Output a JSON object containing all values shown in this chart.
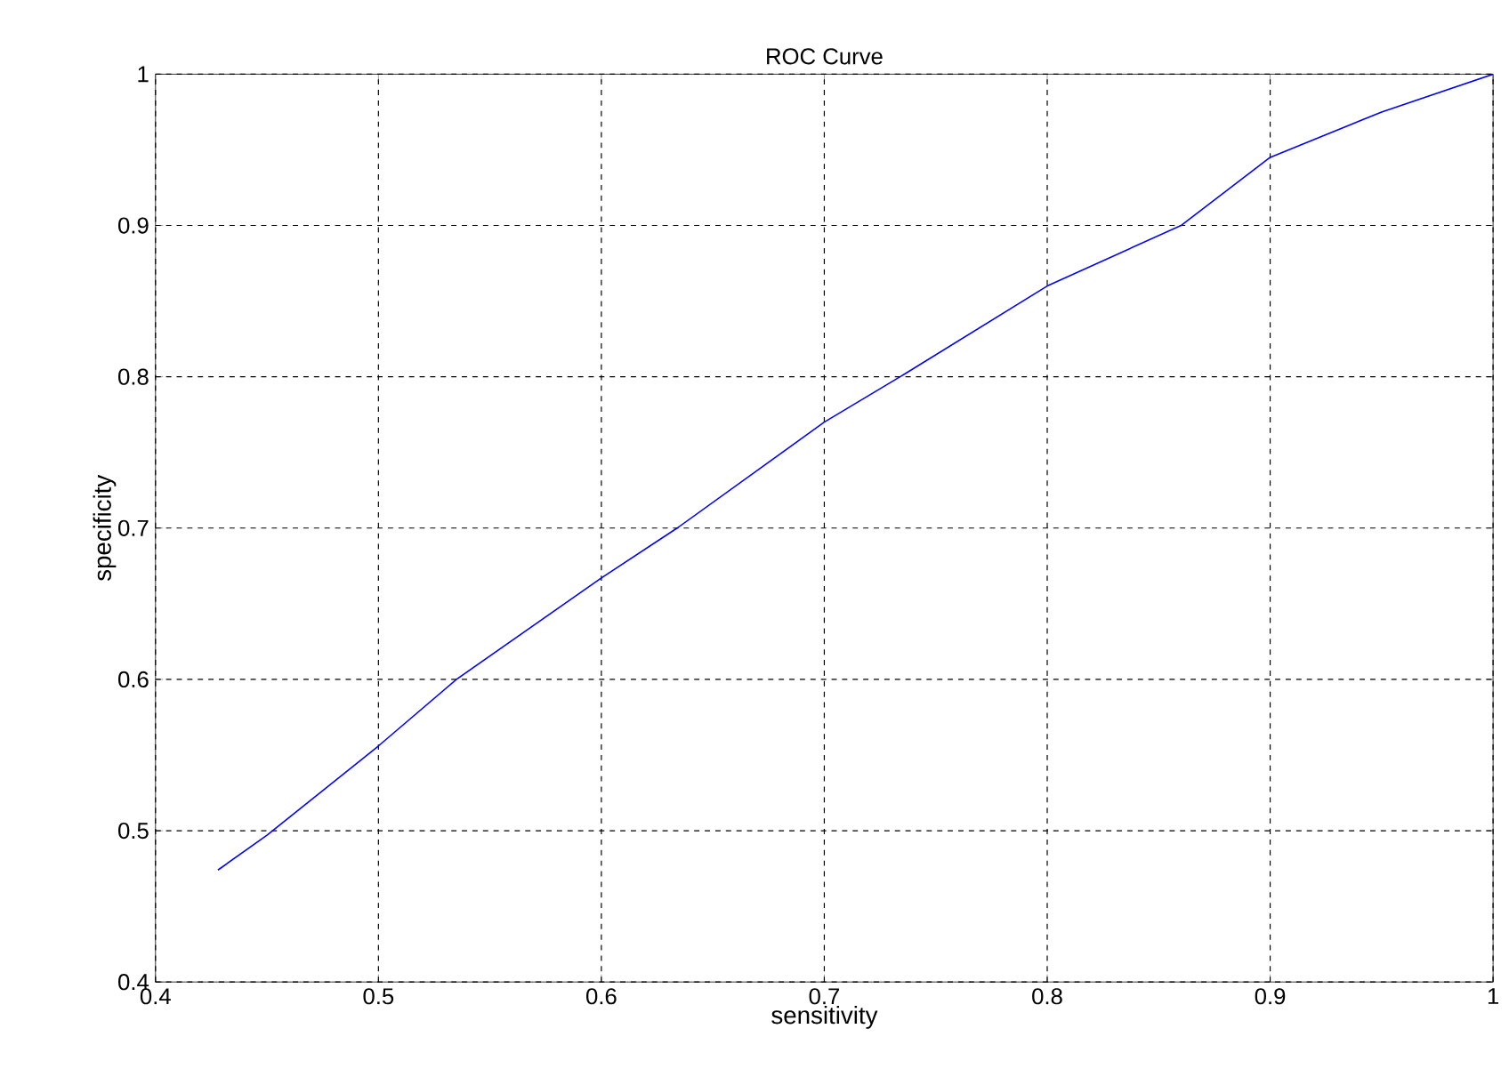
{
  "chart_data": {
    "type": "line",
    "title": "ROC Curve",
    "xlabel": "sensitivity",
    "ylabel": "specificity",
    "x": [
      0.428,
      0.45,
      0.5,
      0.535,
      0.6,
      0.634,
      0.7,
      0.734,
      0.8,
      0.86,
      0.9,
      0.95,
      1.0
    ],
    "series": [
      {
        "color": "#0000ff",
        "values": [
          0.474,
          0.497,
          0.556,
          0.6,
          0.667,
          0.7,
          0.77,
          0.8,
          0.86,
          0.9,
          0.945,
          0.975,
          1.0
        ]
      }
    ],
    "xlim": [
      0.4,
      1
    ],
    "ylim": [
      0.4,
      1
    ],
    "xticks": [
      0.4,
      0.5,
      0.6,
      0.7,
      0.8,
      0.9,
      1
    ],
    "yticks": [
      0.4,
      0.5,
      0.6,
      0.7,
      0.8,
      0.9,
      1
    ],
    "grid": true,
    "line_style": "solid",
    "marker": "none"
  }
}
